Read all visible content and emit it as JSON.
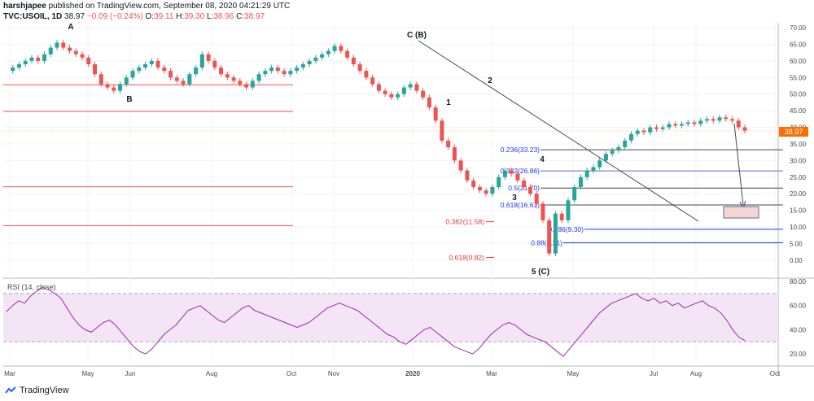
{
  "header": {
    "author": "harshjapee",
    "published": "published on TradingView.com, September 08, 2020 04:21:29 UTC",
    "symbol": "TVC:USOIL, 1D",
    "last": "38.97",
    "change": "−0.09 (−0.24%)",
    "o_label": "O:",
    "o": "39.11",
    "h_label": "H:",
    "h": "39.30",
    "l_label": "L:",
    "l": "38.96",
    "c_label": "C:",
    "c": "38.97"
  },
  "footer": {
    "brand": "TradingView"
  },
  "colors": {
    "up": "#26a69a",
    "down": "#ef5350",
    "rsi_line": "#9c27b0",
    "rsi_band": "#f3e5f5",
    "fib_blue": "#1e30ff",
    "fib_red": "#e53935",
    "price_tag": "#ff6d00"
  },
  "chart_data": [
    {
      "type": "candlestick",
      "ylim": [
        -2.5,
        71
      ],
      "yticks": [
        "0.00",
        "5.00",
        "10.00",
        "15.00",
        "20.00",
        "25.00",
        "30.00",
        "35.00",
        "40.00",
        "45.00",
        "50.00",
        "55.00",
        "60.00",
        "65.00",
        "70.00"
      ],
      "ytick_values": [
        0,
        5,
        10,
        15,
        20,
        25,
        30,
        35,
        40,
        45,
        50,
        55,
        60,
        65,
        70
      ],
      "xticks": [
        "Mar",
        "May",
        "Jun",
        "Aug",
        "Oct",
        "Nov",
        "2020",
        "Mar",
        "May",
        "Jul",
        "Aug",
        "Oct"
      ],
      "last_price": "38.97",
      "wave_labels": [
        "A",
        "B",
        "C (B)",
        "1",
        "2",
        "3",
        "4",
        "5 (C)"
      ],
      "fib_levels_blue": [
        {
          "label": "0.236(33.23)",
          "value": 33.23
        },
        {
          "label": "0.382(26.86)",
          "value": 26.86
        },
        {
          "label": "0.5(21.70)",
          "value": 21.7
        },
        {
          "label": "0.618(16.61)",
          "value": 16.61
        },
        {
          "label": "0.786(9.30)",
          "value": 9.3
        },
        {
          "label": "0.88(5.21)",
          "value": 5.21
        }
      ],
      "fib_levels_red": [
        {
          "label": "0.382(11.58)",
          "value": 11.58
        },
        {
          "label": "0.618(0.82)",
          "value": 0.82
        }
      ],
      "support_lines_red": [
        52.8,
        44.8,
        22.1,
        10.4
      ],
      "price_path": [
        57,
        58,
        59,
        60,
        61,
        60,
        62,
        64,
        65.5,
        64,
        63,
        62,
        61,
        59,
        56,
        53,
        52,
        51,
        53,
        55,
        57,
        58,
        59,
        60,
        58,
        57,
        55,
        54,
        53,
        56,
        58,
        62,
        60,
        58,
        56,
        55,
        54,
        53,
        52,
        54,
        56,
        57,
        58,
        57,
        56,
        57,
        58,
        59,
        60,
        61,
        62,
        63,
        64.5,
        63,
        61,
        59,
        57,
        55,
        53,
        51,
        50,
        49,
        50,
        52,
        53,
        51,
        49,
        46,
        42,
        36,
        34,
        30,
        27,
        24,
        22,
        21,
        20,
        22,
        25,
        27,
        26,
        24,
        22,
        20,
        17,
        12,
        2,
        14,
        12,
        18,
        22,
        25,
        27,
        28,
        30,
        32,
        33,
        34,
        36,
        38,
        39,
        38.5,
        40,
        39.5,
        40,
        41,
        40.5,
        41,
        41.5,
        41,
        42,
        42.5,
        42,
        43,
        42.5,
        42,
        40,
        38.97
      ]
    },
    {
      "type": "line",
      "title": "RSI (14, close)",
      "ylim": [
        10,
        80
      ],
      "yticks": [
        "20.00",
        "40.00",
        "60.00",
        "80.00"
      ],
      "ytick_values": [
        20,
        40,
        60,
        80
      ],
      "band": [
        30,
        70
      ],
      "values": [
        55,
        60,
        64,
        62,
        68,
        72,
        75,
        73,
        70,
        66,
        58,
        50,
        44,
        40,
        38,
        42,
        46,
        48,
        44,
        38,
        32,
        26,
        22,
        20,
        24,
        30,
        36,
        40,
        44,
        50,
        56,
        58,
        60,
        56,
        52,
        48,
        46,
        50,
        54,
        58,
        60,
        56,
        54,
        52,
        50,
        48,
        46,
        44,
        42,
        44,
        46,
        50,
        54,
        58,
        60,
        62,
        60,
        58,
        56,
        52,
        48,
        44,
        40,
        36,
        34,
        30,
        28,
        32,
        36,
        40,
        42,
        38,
        34,
        30,
        26,
        24,
        22,
        20,
        24,
        30,
        36,
        40,
        44,
        46,
        44,
        40,
        36,
        34,
        32,
        30,
        26,
        22,
        18,
        24,
        30,
        36,
        42,
        48,
        54,
        58,
        62,
        64,
        66,
        68,
        70,
        66,
        64,
        66,
        62,
        64,
        60,
        62,
        58,
        60,
        62,
        64,
        60,
        58,
        54,
        48,
        40,
        34,
        31
      ]
    }
  ]
}
